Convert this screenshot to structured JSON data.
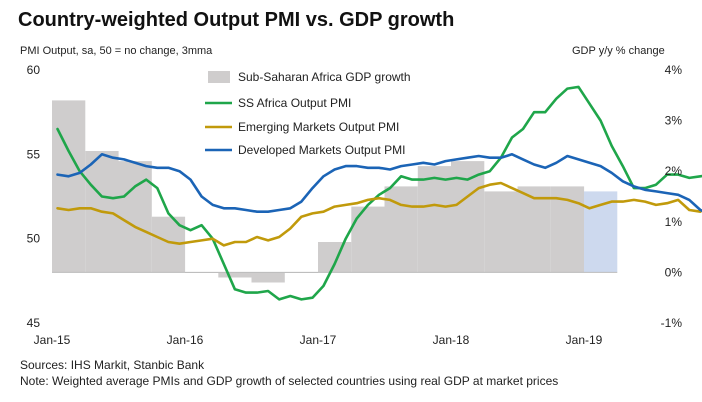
{
  "header": {
    "title": "Country-weighted Output PMI vs. GDP growth",
    "subtitle_left": "PMI Output, sa, 50 = no change, 3mma",
    "subtitle_right": "GDP y/y % change"
  },
  "footer": {
    "source": "Sources: IHS Markit, Stanbic Bank",
    "note": "Note: Weighted average PMIs and GDP growth of selected countries using real GDP at market prices"
  },
  "chart_data": {
    "type": "line",
    "x_ticks": [
      "Jan-15",
      "Jan-16",
      "Jan-17",
      "Jan-18",
      "Jan-19"
    ],
    "y_left": {
      "ylim": [
        45,
        60
      ],
      "ticks": [
        "45",
        "50",
        "55",
        "60"
      ]
    },
    "y_right": {
      "ylim": [
        -1,
        4
      ],
      "ticks": [
        "-1%",
        "0%",
        "1%",
        "2%",
        "3%",
        "4%"
      ]
    },
    "bars": {
      "name": "Sub-Saharan Africa GDP growth",
      "color": "#cfcdcd",
      "forecast_color": "#cdd9ee",
      "quarters": [
        "2015Q1",
        "2015Q2",
        "2015Q3",
        "2015Q4",
        "2016Q1",
        "2016Q2",
        "2016Q3",
        "2016Q4",
        "2017Q1",
        "2017Q2",
        "2017Q3",
        "2017Q4",
        "2018Q1",
        "2018Q2",
        "2018Q3",
        "2018Q4",
        "2019Q1"
      ],
      "values": [
        3.4,
        2.4,
        2.2,
        1.1,
        0.0,
        -0.1,
        -0.2,
        0.0,
        0.6,
        1.3,
        1.7,
        2.1,
        2.2,
        1.6,
        1.7,
        1.7,
        1.6
      ],
      "forecast_from_index": 16
    },
    "series": [
      {
        "name": "SS Africa Output PMI",
        "color": "#1fa64a",
        "values": [
          56.5,
          55.2,
          54.0,
          53.2,
          52.5,
          52.4,
          52.5,
          53.1,
          53.5,
          53.0,
          51.5,
          50.8,
          50.5,
          50.8,
          50.0,
          48.5,
          47.0,
          46.8,
          46.8,
          46.9,
          46.4,
          46.6,
          46.4,
          46.5,
          47.2,
          48.5,
          50.0,
          51.2,
          52.0,
          52.6,
          53.0,
          53.7,
          53.5,
          53.5,
          53.6,
          53.5,
          53.6,
          53.5,
          53.8,
          54.0,
          54.8,
          56.0,
          56.5,
          57.5,
          57.5,
          58.3,
          58.9,
          59.0,
          58.0,
          57.0,
          55.5,
          54.3,
          53.0,
          53.0,
          53.2,
          53.8,
          53.8,
          53.6,
          53.7,
          53.8,
          53.6,
          53.8
        ]
      },
      {
        "name": "Emerging Markets Output PMI",
        "color": "#c19a0b",
        "values": [
          51.8,
          51.7,
          51.8,
          51.8,
          51.6,
          51.5,
          51.1,
          50.7,
          50.4,
          50.1,
          49.8,
          49.7,
          49.8,
          49.9,
          50.0,
          49.6,
          49.8,
          49.8,
          50.1,
          49.9,
          50.1,
          50.6,
          51.3,
          51.5,
          51.6,
          51.9,
          52.0,
          52.1,
          52.3,
          52.4,
          52.3,
          52.0,
          51.9,
          51.9,
          52.0,
          51.9,
          52.0,
          52.5,
          53.0,
          53.2,
          53.3,
          53.0,
          52.7,
          52.4,
          52.4,
          52.4,
          52.3,
          52.1,
          51.8,
          52.0,
          52.2,
          52.2,
          52.3,
          52.2,
          52.0,
          52.1,
          52.3,
          51.7,
          51.6
        ]
      },
      {
        "name": "Developed Markets Output PMI",
        "color": "#1b64b6",
        "values": [
          53.8,
          53.7,
          53.9,
          54.4,
          55.0,
          54.8,
          54.7,
          54.5,
          54.3,
          54.2,
          54.2,
          54.0,
          53.5,
          52.5,
          52.0,
          51.8,
          51.8,
          51.7,
          51.6,
          51.6,
          51.7,
          51.8,
          52.2,
          53.0,
          53.7,
          54.1,
          54.3,
          54.3,
          54.2,
          54.2,
          54.1,
          54.3,
          54.4,
          54.5,
          54.4,
          54.6,
          54.7,
          54.8,
          54.9,
          54.8,
          54.8,
          55.0,
          54.7,
          54.4,
          54.2,
          54.5,
          54.9,
          54.7,
          54.5,
          54.3,
          53.9,
          53.4,
          53.1,
          52.9,
          52.8,
          52.7,
          52.6,
          52.3,
          51.7,
          51.4
        ]
      }
    ],
    "legend_placement": "top-left-inside",
    "grid": false
  }
}
